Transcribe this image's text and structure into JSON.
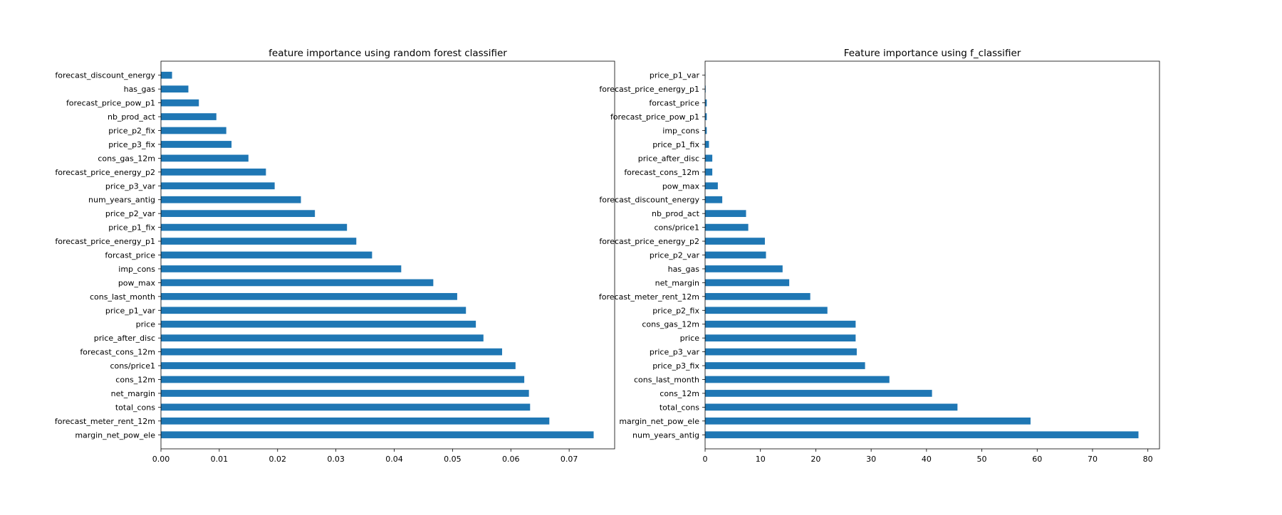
{
  "colors": {
    "bar": "#1f77b4",
    "axis": "#000000",
    "background": "#ffffff"
  },
  "chart_data": [
    {
      "type": "bar",
      "orientation": "horizontal",
      "title": "feature importance using random forest classifier",
      "xlabel": "",
      "ylabel": "",
      "grid": false,
      "xlim": [
        0,
        0.0778
      ],
      "xticks": [
        0.0,
        0.01,
        0.02,
        0.03,
        0.04,
        0.05,
        0.06,
        0.07
      ],
      "xtick_labels": [
        "0.00",
        "0.01",
        "0.02",
        "0.03",
        "0.04",
        "0.05",
        "0.06",
        "0.07"
      ],
      "categories": [
        "forecast_discount_energy",
        "has_gas",
        "forecast_price_pow_p1",
        "nb_prod_act",
        "price_p2_fix",
        "price_p3_fix",
        "cons_gas_12m",
        "forecast_price_energy_p2",
        "price_p3_var",
        "num_years_antig",
        "price_p2_var",
        "price_p1_fix",
        "forecast_price_energy_p1",
        "forcast_price",
        "imp_cons",
        "pow_max",
        "cons_last_month",
        "price_p1_var",
        "price",
        "price_after_disc",
        "forecast_cons_12m",
        "cons/price1",
        "cons_12m",
        "net_margin",
        "total_cons",
        "forecast_meter_rent_12m",
        "margin_net_pow_ele"
      ],
      "values": [
        0.0019,
        0.0047,
        0.0065,
        0.0095,
        0.0112,
        0.0121,
        0.015,
        0.018,
        0.0195,
        0.024,
        0.0264,
        0.0319,
        0.0335,
        0.0362,
        0.0412,
        0.0467,
        0.0508,
        0.0523,
        0.054,
        0.0553,
        0.0585,
        0.0608,
        0.0623,
        0.0631,
        0.0633,
        0.0666,
        0.0742
      ]
    },
    {
      "type": "bar",
      "orientation": "horizontal",
      "title": "Feature importance using f_classifier",
      "xlabel": "",
      "ylabel": "",
      "grid": false,
      "xlim": [
        0,
        82.1
      ],
      "xticks": [
        0,
        10,
        20,
        30,
        40,
        50,
        60,
        70,
        80
      ],
      "xtick_labels": [
        "0",
        "10",
        "20",
        "30",
        "40",
        "50",
        "60",
        "70",
        "80"
      ],
      "categories": [
        "price_p1_var",
        "forecast_price_energy_p1",
        "forcast_price",
        "forecast_price_pow_p1",
        "imp_cons",
        "price_p1_fix",
        "price_after_disc",
        "forecast_cons_12m",
        "pow_max",
        "forecast_discount_energy",
        "nb_prod_act",
        "cons/price1",
        "forecast_price_energy_p2",
        "price_p2_var",
        "has_gas",
        "net_margin",
        "forecast_meter_rent_12m",
        "price_p2_fix",
        "cons_gas_12m",
        "price",
        "price_p3_var",
        "price_p3_fix",
        "cons_last_month",
        "cons_12m",
        "total_cons",
        "margin_net_pow_ele",
        "num_years_antig"
      ],
      "values": [
        0.05,
        0.1,
        0.3,
        0.3,
        0.3,
        0.7,
        1.3,
        1.3,
        2.3,
        3.1,
        7.4,
        7.8,
        10.8,
        11.0,
        14.0,
        15.2,
        19.0,
        22.1,
        27.2,
        27.2,
        27.4,
        28.9,
        33.3,
        41.0,
        45.6,
        58.8,
        78.3
      ]
    }
  ]
}
